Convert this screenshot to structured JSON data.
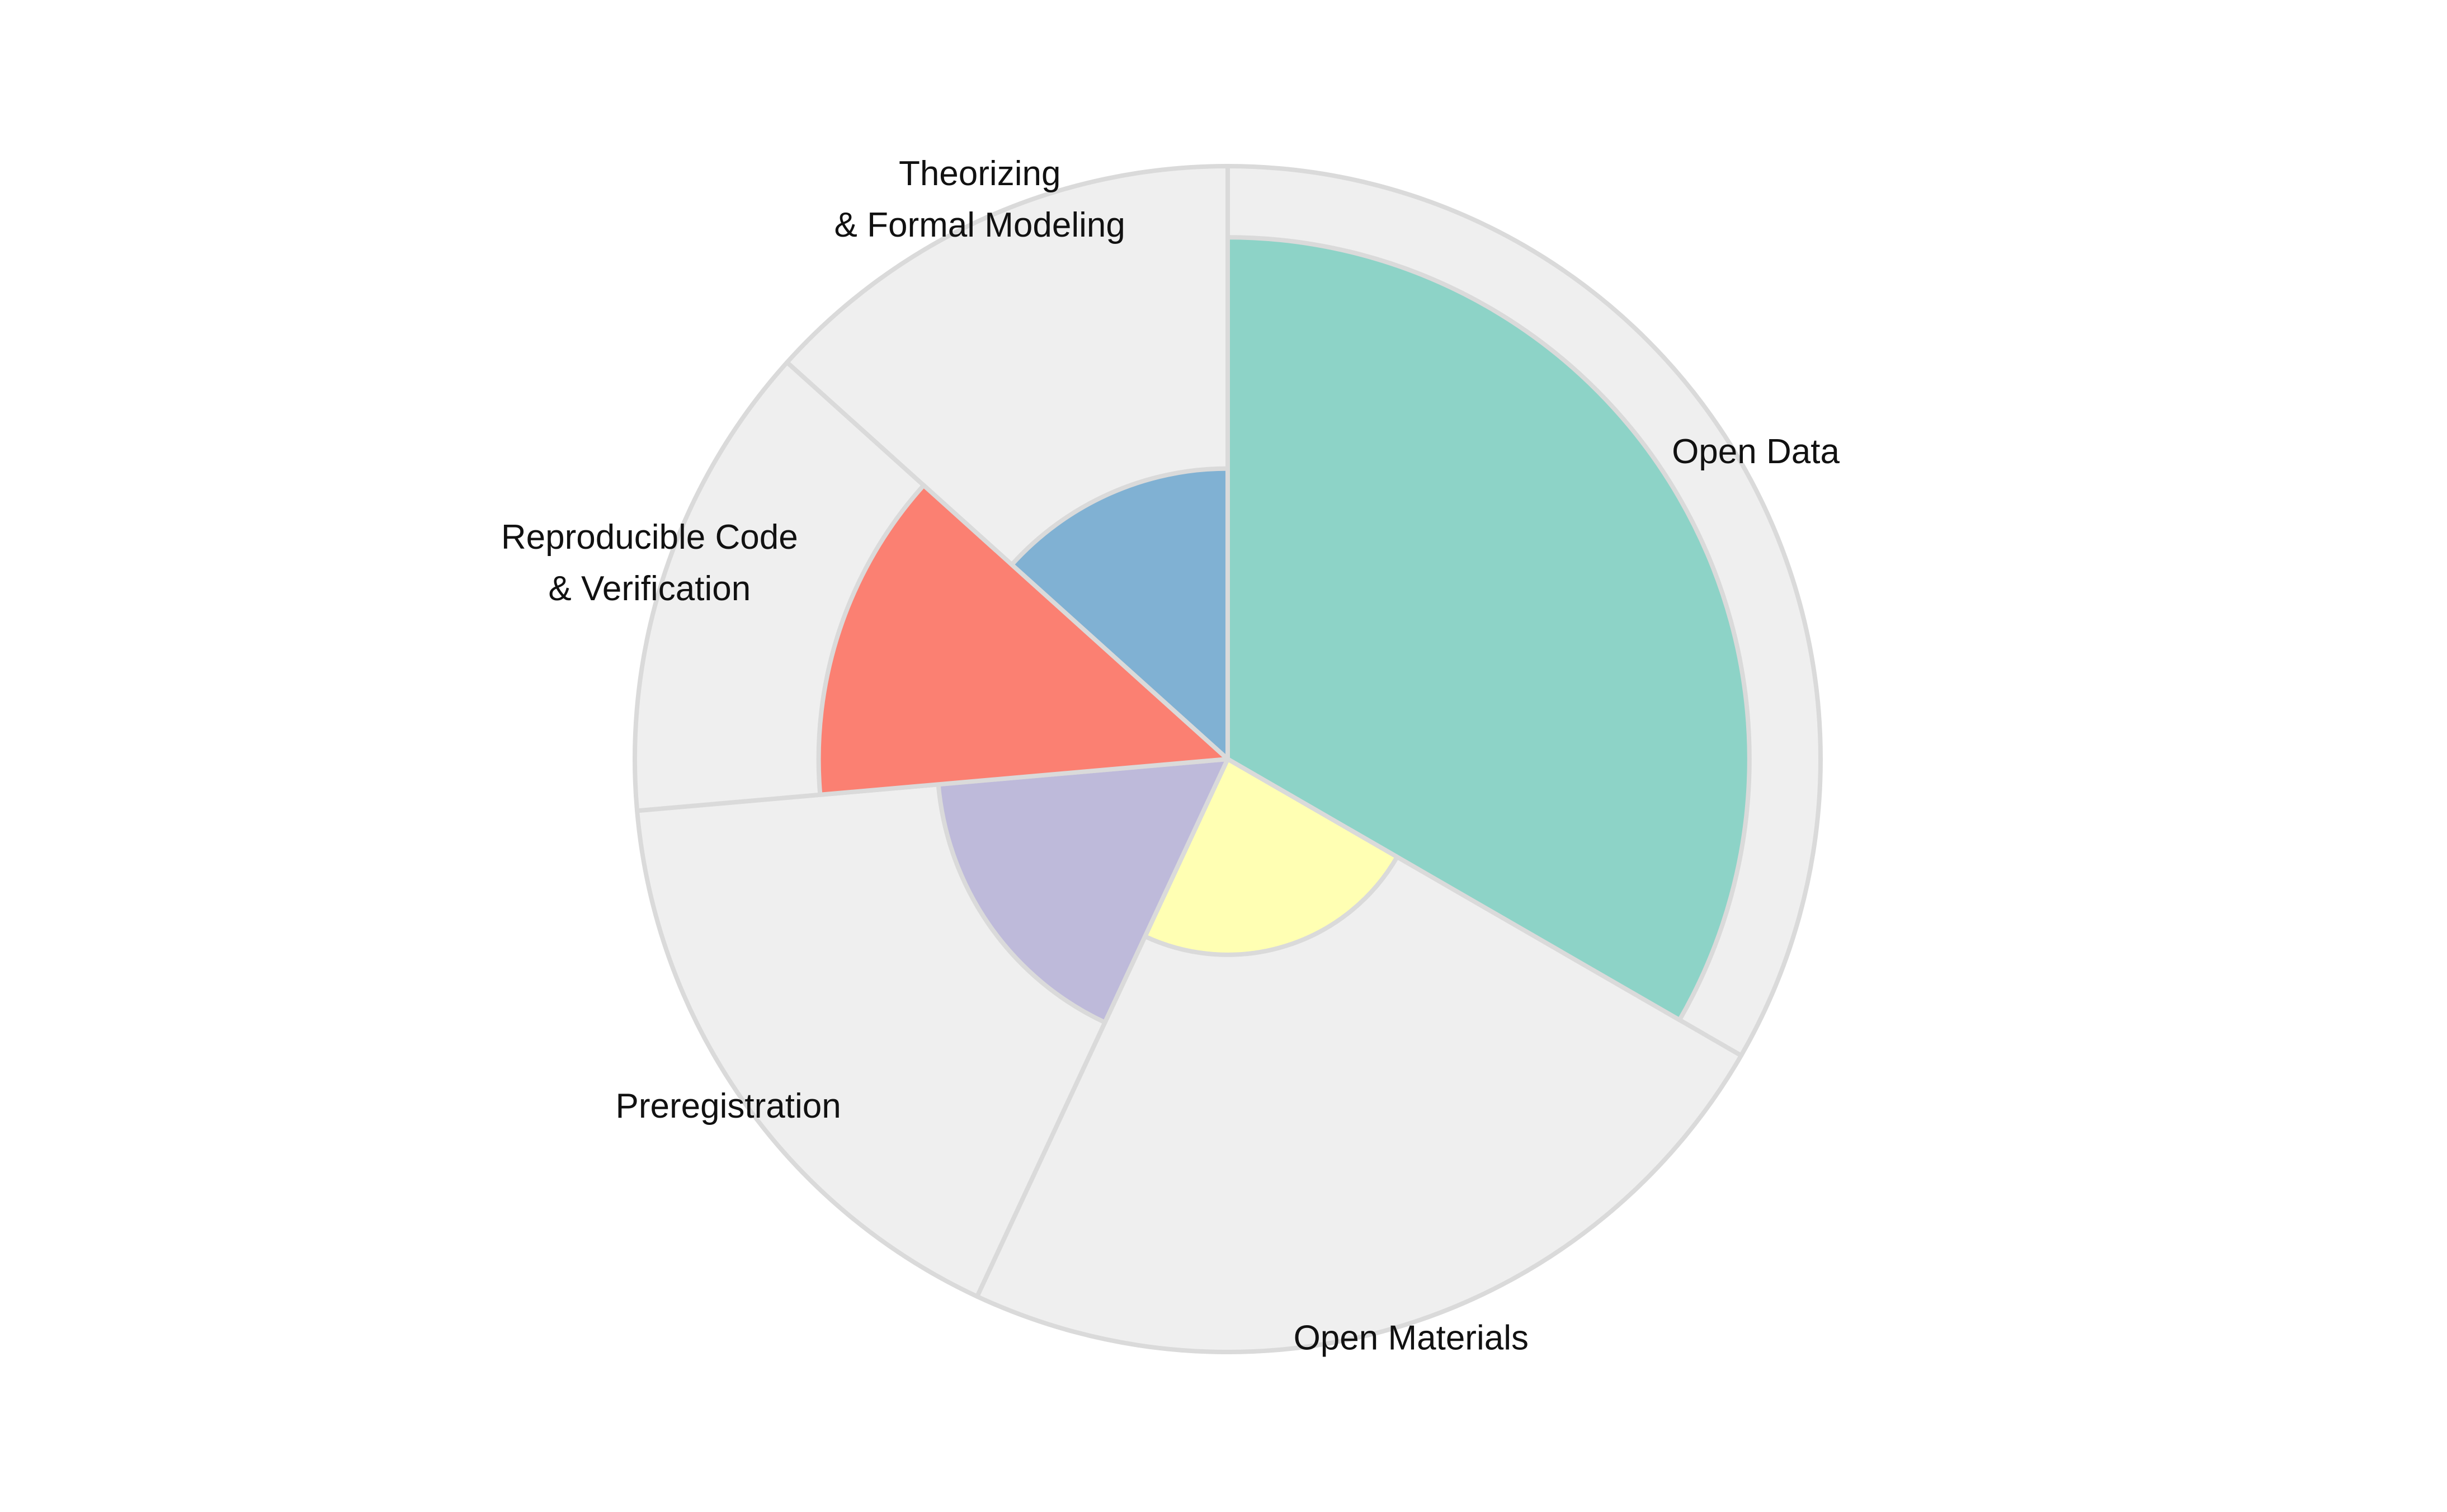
{
  "chart_data": {
    "type": "polar-area",
    "title": "",
    "categories": [
      {
        "lines": [
          "Open Data"
        ],
        "start_deg": 0,
        "end_deg": 120,
        "value": 0.88,
        "color": "#8dd3c7"
      },
      {
        "lines": [
          "Open Materials"
        ],
        "start_deg": 120,
        "end_deg": 205,
        "value": 0.33,
        "color": "#ffffb3"
      },
      {
        "lines": [
          "Preregistration"
        ],
        "start_deg": 205,
        "end_deg": 265,
        "value": 0.49,
        "color": "#bebada"
      },
      {
        "lines": [
          "Reproducible Code",
          "& Verification"
        ],
        "start_deg": 265,
        "end_deg": 312,
        "value": 0.69,
        "color": "#fb8072"
      },
      {
        "lines": [
          "Theorizing",
          "& Formal Modeling"
        ],
        "start_deg": 312,
        "end_deg": 360,
        "value": 0.49,
        "color": "#80b1d3"
      }
    ],
    "radial_max": 1.0,
    "background_color": "#efefef",
    "grid_color": "#dadada",
    "legend": "none"
  }
}
